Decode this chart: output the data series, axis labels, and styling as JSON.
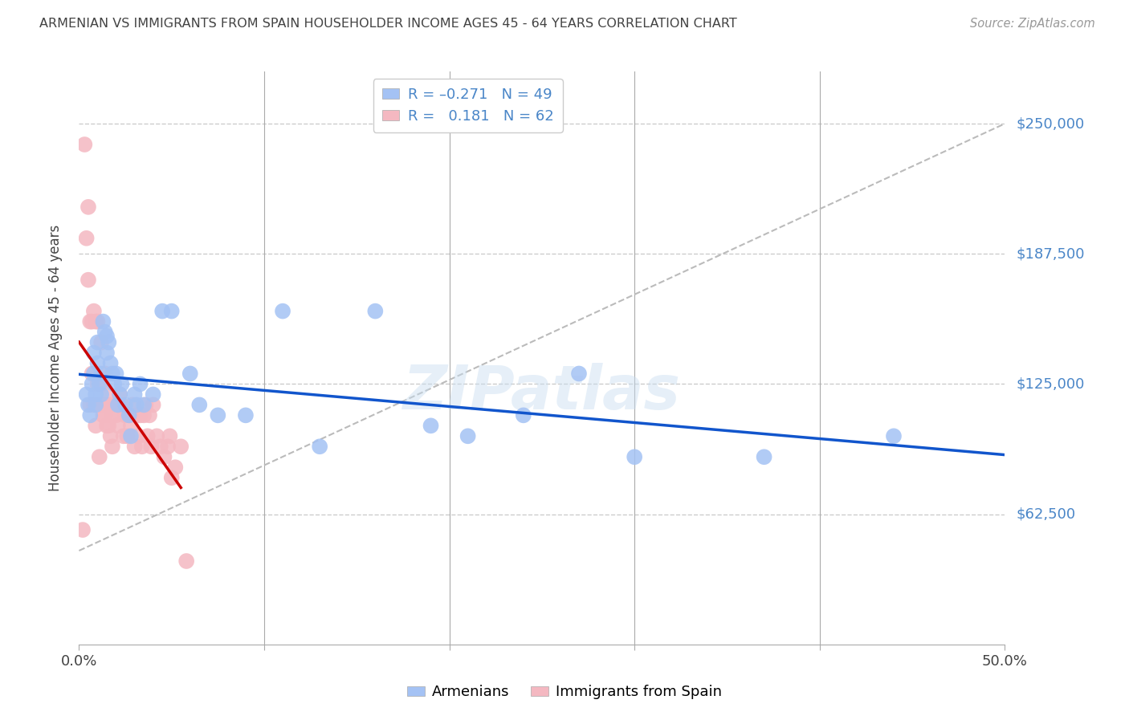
{
  "title": "ARMENIAN VS IMMIGRANTS FROM SPAIN HOUSEHOLDER INCOME AGES 45 - 64 YEARS CORRELATION CHART",
  "source": "Source: ZipAtlas.com",
  "ylabel": "Householder Income Ages 45 - 64 years",
  "xlim": [
    0.0,
    0.5
  ],
  "ylim": [
    0,
    275000
  ],
  "yticks": [
    62500,
    125000,
    187500,
    250000
  ],
  "ytick_labels": [
    "$62,500",
    "$125,000",
    "$187,500",
    "$250,000"
  ],
  "blue_color": "#a4c2f4",
  "pink_color": "#f4b8c1",
  "blue_line_color": "#1155cc",
  "pink_line_color": "#cc0000",
  "dashed_line_color": "#bbbbbb",
  "title_color": "#434343",
  "source_color": "#999999",
  "right_label_color": "#4a86c8",
  "grid_color": "#cccccc",
  "armenians_x": [
    0.004,
    0.005,
    0.006,
    0.007,
    0.008,
    0.008,
    0.009,
    0.009,
    0.01,
    0.01,
    0.011,
    0.012,
    0.012,
    0.013,
    0.014,
    0.015,
    0.015,
    0.016,
    0.017,
    0.018,
    0.019,
    0.02,
    0.021,
    0.022,
    0.023,
    0.025,
    0.027,
    0.028,
    0.03,
    0.031,
    0.033,
    0.035,
    0.04,
    0.045,
    0.05,
    0.06,
    0.065,
    0.075,
    0.09,
    0.11,
    0.13,
    0.16,
    0.19,
    0.21,
    0.24,
    0.27,
    0.3,
    0.37,
    0.44
  ],
  "armenians_y": [
    120000,
    115000,
    110000,
    125000,
    140000,
    130000,
    120000,
    115000,
    145000,
    135000,
    125000,
    130000,
    120000,
    155000,
    150000,
    148000,
    140000,
    145000,
    135000,
    130000,
    125000,
    130000,
    115000,
    120000,
    125000,
    115000,
    110000,
    100000,
    120000,
    115000,
    125000,
    115000,
    120000,
    160000,
    160000,
    130000,
    115000,
    110000,
    110000,
    160000,
    95000,
    160000,
    105000,
    100000,
    110000,
    130000,
    90000,
    90000,
    100000
  ],
  "spain_x": [
    0.002,
    0.003,
    0.004,
    0.005,
    0.005,
    0.006,
    0.006,
    0.007,
    0.007,
    0.008,
    0.008,
    0.009,
    0.009,
    0.01,
    0.01,
    0.011,
    0.011,
    0.012,
    0.012,
    0.013,
    0.013,
    0.014,
    0.014,
    0.015,
    0.015,
    0.016,
    0.016,
    0.017,
    0.017,
    0.018,
    0.018,
    0.019,
    0.02,
    0.021,
    0.022,
    0.023,
    0.024,
    0.025,
    0.026,
    0.027,
    0.028,
    0.029,
    0.03,
    0.031,
    0.032,
    0.033,
    0.034,
    0.035,
    0.036,
    0.037,
    0.038,
    0.039,
    0.04,
    0.042,
    0.044,
    0.046,
    0.048,
    0.049,
    0.05,
    0.052,
    0.055,
    0.058
  ],
  "spain_y": [
    55000,
    240000,
    195000,
    175000,
    210000,
    155000,
    115000,
    155000,
    130000,
    115000,
    160000,
    155000,
    105000,
    155000,
    125000,
    115000,
    90000,
    145000,
    125000,
    115000,
    110000,
    130000,
    110000,
    115000,
    105000,
    120000,
    105000,
    115000,
    100000,
    110000,
    95000,
    115000,
    110000,
    105000,
    120000,
    115000,
    100000,
    110000,
    100000,
    110000,
    105000,
    115000,
    95000,
    110000,
    100000,
    110000,
    95000,
    110000,
    115000,
    100000,
    110000,
    95000,
    115000,
    100000,
    95000,
    90000,
    95000,
    100000,
    80000,
    85000,
    95000,
    40000
  ]
}
